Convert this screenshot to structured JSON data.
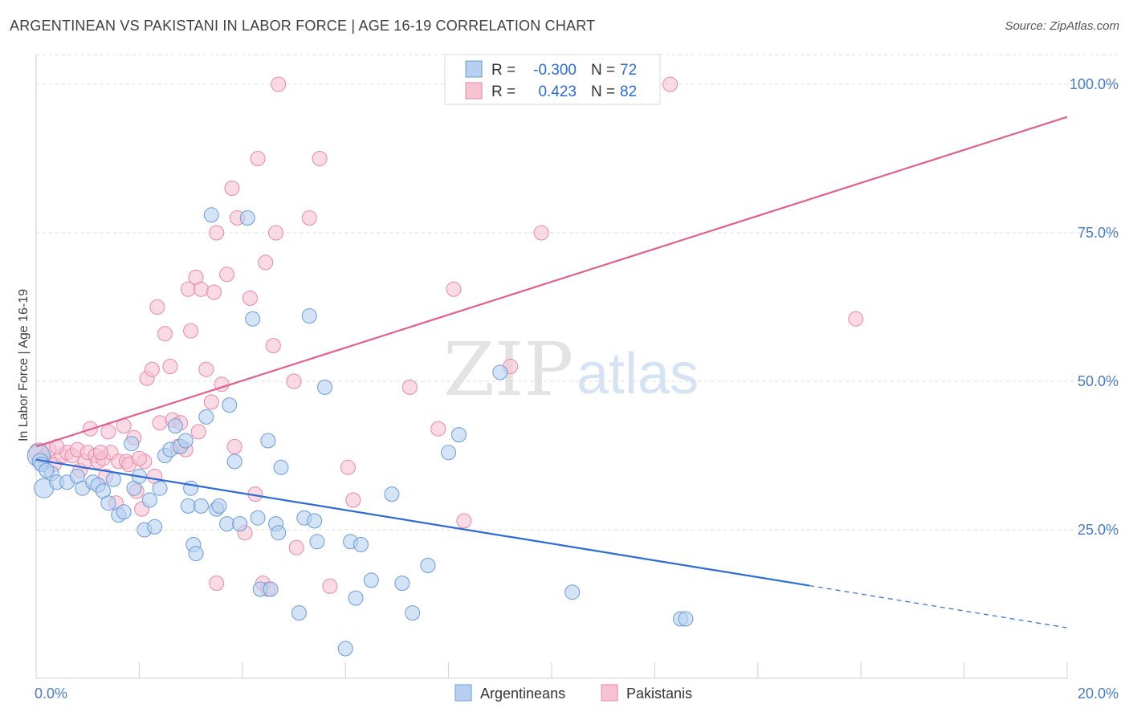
{
  "header": {
    "title": "ARGENTINEAN VS PAKISTANI IN LABOR FORCE | AGE 16-19 CORRELATION CHART",
    "source": "Source: ZipAtlas.com"
  },
  "watermark": {
    "zip": "ZIP",
    "atlas": "atlas"
  },
  "colors": {
    "blue_fill": "#b7d0f0",
    "blue_stroke": "#6a9bd8",
    "blue_line": "#2b6cd4",
    "pink_fill": "#f6c3d3",
    "pink_stroke": "#e887a6",
    "pink_line": "#e0618b",
    "grid": "#dddddd",
    "tick_label": "#4a7cc4"
  },
  "legend_top": {
    "rows": [
      {
        "r_label": "R =",
        "r_value": "-0.300",
        "n_label": "N =",
        "n_value": "72"
      },
      {
        "r_label": "R =",
        "r_value": "0.423",
        "n_label": "N =",
        "n_value": "82"
      }
    ]
  },
  "legend_bottom": {
    "items": [
      "Argentineans",
      "Pakistanis"
    ]
  },
  "chart_data": {
    "type": "scatter",
    "title": "ARGENTINEAN VS PAKISTANI IN LABOR FORCE | AGE 16-19 CORRELATION CHART",
    "xlabel": "",
    "ylabel": "In Labor Force | Age 16-19",
    "xlim": [
      0,
      20
    ],
    "ylim": [
      0,
      105
    ],
    "x_tick_labels": [
      "0.0%",
      "20.0%"
    ],
    "y_ticks": [
      25,
      50,
      75,
      100
    ],
    "y_tick_labels": [
      "25.0%",
      "50.0%",
      "75.0%",
      "100.0%"
    ],
    "grid": true,
    "legend_position": "top-center",
    "series": [
      {
        "name": "Argentineans",
        "r": -0.3,
        "n": 72,
        "trend": {
          "x": [
            0,
            15
          ],
          "y": [
            36.8,
            15.6
          ]
        },
        "trend_dashed": {
          "x": [
            15,
            20
          ],
          "y": [
            15.6,
            8.5
          ]
        },
        "points": [
          [
            0.05,
            37.5,
            14
          ],
          [
            0.08,
            36.5,
            10
          ],
          [
            0.15,
            32.0,
            12
          ],
          [
            0.3,
            34.5,
            9
          ],
          [
            0.4,
            33.0,
            9
          ],
          [
            0.6,
            33.0,
            9
          ],
          [
            0.8,
            34.0,
            9
          ],
          [
            0.9,
            32.0,
            9
          ],
          [
            1.1,
            33.0,
            9
          ],
          [
            1.2,
            32.5,
            9
          ],
          [
            1.3,
            31.5,
            9
          ],
          [
            1.4,
            29.5,
            9
          ],
          [
            1.5,
            33.5,
            9
          ],
          [
            1.6,
            27.5,
            9
          ],
          [
            1.7,
            28.0,
            9
          ],
          [
            1.85,
            39.5,
            9
          ],
          [
            1.9,
            32.0,
            9
          ],
          [
            2.0,
            34.0,
            9
          ],
          [
            2.1,
            25.0,
            9
          ],
          [
            2.2,
            30.0,
            9
          ],
          [
            2.3,
            25.5,
            9
          ],
          [
            2.4,
            32.0,
            9
          ],
          [
            2.5,
            37.5,
            9
          ],
          [
            2.6,
            38.5,
            9
          ],
          [
            2.7,
            42.5,
            9
          ],
          [
            2.8,
            39.0,
            9
          ],
          [
            2.9,
            40.0,
            9
          ],
          [
            2.95,
            29.0,
            9
          ],
          [
            3.0,
            32.0,
            9
          ],
          [
            3.05,
            22.5,
            9
          ],
          [
            3.1,
            21.0,
            9
          ],
          [
            3.2,
            29.0,
            9
          ],
          [
            3.3,
            44.0,
            9
          ],
          [
            3.4,
            78.0,
            9
          ],
          [
            3.5,
            28.5,
            9
          ],
          [
            3.55,
            29.0,
            9
          ],
          [
            3.7,
            26.0,
            9
          ],
          [
            3.75,
            46.0,
            9
          ],
          [
            3.85,
            36.5,
            9
          ],
          [
            3.95,
            26.0,
            9
          ],
          [
            4.1,
            77.5,
            9
          ],
          [
            4.2,
            60.5,
            9
          ],
          [
            4.3,
            27.0,
            9
          ],
          [
            4.35,
            15.0,
            9
          ],
          [
            4.5,
            40.0,
            9
          ],
          [
            4.55,
            15.0,
            9
          ],
          [
            4.65,
            26.0,
            9
          ],
          [
            4.7,
            24.5,
            9
          ],
          [
            4.75,
            35.5,
            9
          ],
          [
            5.1,
            11.0,
            9
          ],
          [
            5.2,
            27.0,
            9
          ],
          [
            5.3,
            61.0,
            9
          ],
          [
            5.4,
            26.5,
            9
          ],
          [
            5.45,
            23.0,
            9
          ],
          [
            5.6,
            49.0,
            9
          ],
          [
            6.0,
            5.0,
            9
          ],
          [
            6.1,
            23.0,
            9
          ],
          [
            6.2,
            13.5,
            9
          ],
          [
            6.3,
            22.5,
            9
          ],
          [
            6.5,
            16.5,
            9
          ],
          [
            6.9,
            31.0,
            9
          ],
          [
            7.1,
            16.0,
            9
          ],
          [
            7.3,
            11.0,
            9
          ],
          [
            7.6,
            19.0,
            9
          ],
          [
            8.0,
            38.0,
            9
          ],
          [
            8.2,
            41.0,
            9
          ],
          [
            9.0,
            51.5,
            9
          ],
          [
            10.4,
            14.5,
            9
          ],
          [
            12.5,
            10.0,
            9
          ],
          [
            12.6,
            10.0,
            9
          ],
          [
            0.1,
            36.0,
            9
          ],
          [
            0.2,
            35.0,
            9
          ]
        ]
      },
      {
        "name": "Pakistanis",
        "r": 0.423,
        "n": 82,
        "trend": {
          "x": [
            0,
            20
          ],
          "y": [
            39.0,
            94.5
          ]
        },
        "points": [
          [
            0.05,
            38.0,
            12
          ],
          [
            0.15,
            37.0,
            10
          ],
          [
            0.25,
            38.5,
            9
          ],
          [
            0.35,
            36.0,
            9
          ],
          [
            0.5,
            37.5,
            9
          ],
          [
            0.6,
            38.0,
            9
          ],
          [
            0.7,
            37.5,
            9
          ],
          [
            0.8,
            38.5,
            9
          ],
          [
            0.85,
            35.0,
            9
          ],
          [
            0.95,
            36.5,
            9
          ],
          [
            1.0,
            38.0,
            9
          ],
          [
            1.05,
            42.0,
            9
          ],
          [
            1.15,
            37.5,
            9
          ],
          [
            1.2,
            36.5,
            9
          ],
          [
            1.3,
            37.0,
            9
          ],
          [
            1.35,
            34.0,
            9
          ],
          [
            1.4,
            41.5,
            9
          ],
          [
            1.45,
            38.0,
            9
          ],
          [
            1.55,
            29.5,
            9
          ],
          [
            1.6,
            36.5,
            9
          ],
          [
            1.7,
            42.5,
            9
          ],
          [
            1.75,
            36.5,
            9
          ],
          [
            1.8,
            36.0,
            9
          ],
          [
            1.9,
            40.5,
            9
          ],
          [
            1.95,
            31.5,
            9
          ],
          [
            2.05,
            28.5,
            9
          ],
          [
            2.1,
            36.5,
            9
          ],
          [
            2.15,
            50.5,
            9
          ],
          [
            2.25,
            52.0,
            9
          ],
          [
            2.3,
            34.0,
            9
          ],
          [
            2.35,
            62.5,
            9
          ],
          [
            2.4,
            43.0,
            9
          ],
          [
            2.5,
            58.0,
            9
          ],
          [
            2.6,
            52.5,
            9
          ],
          [
            2.65,
            43.5,
            9
          ],
          [
            2.75,
            39.0,
            9
          ],
          [
            2.8,
            43.0,
            9
          ],
          [
            2.9,
            38.5,
            9
          ],
          [
            2.95,
            65.5,
            9
          ],
          [
            3.0,
            58.5,
            9
          ],
          [
            3.1,
            67.5,
            9
          ],
          [
            3.15,
            41.5,
            9
          ],
          [
            3.2,
            65.5,
            9
          ],
          [
            3.3,
            52.0,
            9
          ],
          [
            3.4,
            46.5,
            9
          ],
          [
            3.45,
            65.0,
            9
          ],
          [
            3.5,
            75.0,
            9
          ],
          [
            3.6,
            49.5,
            9
          ],
          [
            3.7,
            68.0,
            9
          ],
          [
            3.8,
            82.5,
            9
          ],
          [
            3.85,
            39.0,
            9
          ],
          [
            3.9,
            77.5,
            9
          ],
          [
            4.05,
            24.5,
            9
          ],
          [
            4.15,
            64.0,
            9
          ],
          [
            4.25,
            31.0,
            9
          ],
          [
            4.3,
            87.5,
            9
          ],
          [
            4.4,
            16.0,
            9
          ],
          [
            4.45,
            70.0,
            9
          ],
          [
            4.5,
            15.0,
            9
          ],
          [
            4.6,
            56.0,
            9
          ],
          [
            4.65,
            75.0,
            9
          ],
          [
            4.7,
            100.0,
            9
          ],
          [
            5.0,
            50.0,
            9
          ],
          [
            5.05,
            22.0,
            9
          ],
          [
            5.3,
            77.5,
            9
          ],
          [
            5.5,
            87.5,
            9
          ],
          [
            5.7,
            15.5,
            9
          ],
          [
            6.05,
            35.5,
            9
          ],
          [
            6.15,
            30.0,
            9
          ],
          [
            7.25,
            49.0,
            9
          ],
          [
            7.8,
            42.0,
            9
          ],
          [
            8.1,
            65.5,
            9
          ],
          [
            8.3,
            26.5,
            9
          ],
          [
            9.2,
            52.5,
            9
          ],
          [
            9.3,
            100.0,
            9
          ],
          [
            9.8,
            75.0,
            9
          ],
          [
            12.3,
            100.0,
            9
          ],
          [
            15.9,
            60.5,
            9
          ],
          [
            3.5,
            16.0,
            9
          ],
          [
            2.0,
            37.0,
            9
          ],
          [
            1.25,
            38.0,
            9
          ],
          [
            0.4,
            39.0,
            9
          ]
        ]
      }
    ]
  }
}
